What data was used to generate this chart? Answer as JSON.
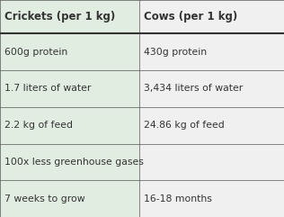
{
  "col1_header": "Crickets (per 1 kg)",
  "col2_header": "Cows (per 1 kg)",
  "rows": [
    [
      "600g protein",
      "430g protein"
    ],
    [
      "1.7 liters of water",
      "3,434 liters of water"
    ],
    [
      "2.2 kg of feed",
      "24.86 kg of feed"
    ],
    [
      "100x less greenhouse gases",
      ""
    ],
    [
      "7 weeks to grow",
      "16-18 months"
    ]
  ],
  "col1_bg": "#e2ede2",
  "col2_bg": "#f0f0f0",
  "line_color": "#555555",
  "header_line_color": "#333333",
  "text_color": "#333333",
  "header_fontsize": 8.5,
  "cell_fontsize": 7.8,
  "col_split": 0.49,
  "fig_w": 3.16,
  "fig_h": 2.41,
  "dpi": 100
}
